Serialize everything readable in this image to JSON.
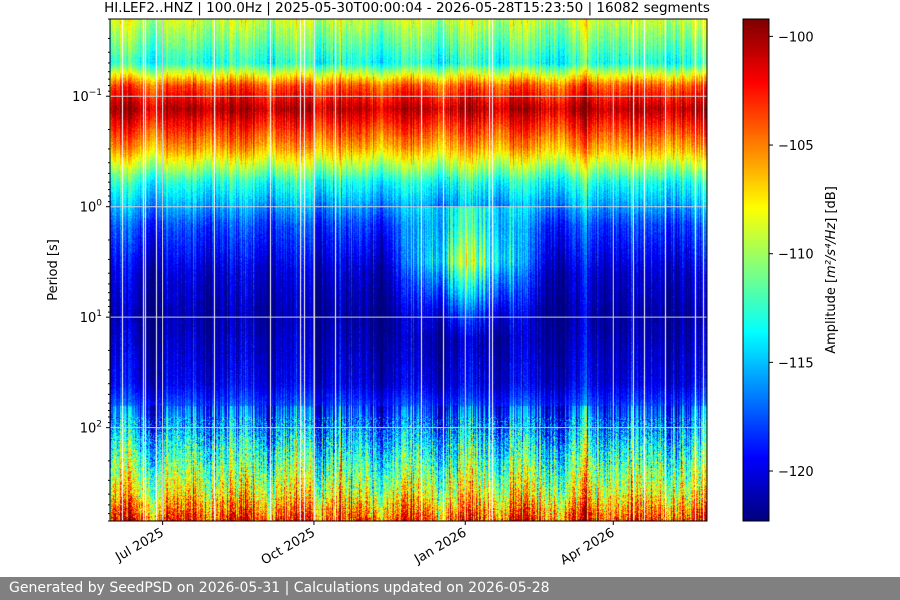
{
  "chart_data": {
    "type": "heatmap",
    "title": "HI.LEF2..HNZ | 100.0Hz | 2025-05-30T00:00:04 - 2026-05-28T15:23:50 | 16082 segments",
    "xlabel": "",
    "ylabel": "Period [s]",
    "x_scale": "time",
    "xlim": [
      "2025-05-30",
      "2026-05-28"
    ],
    "x_ticks": [
      {
        "date": "2025-07-01",
        "label": "Jul 2025"
      },
      {
        "date": "2025-10-01",
        "label": "Oct 2025"
      },
      {
        "date": "2026-01-01",
        "label": "Jan 2026"
      },
      {
        "date": "2026-04-01",
        "label": "Apr 2026"
      }
    ],
    "y_scale": "log",
    "y_inverted": true,
    "ylim": [
      0.02,
      700
    ],
    "y_ticks": [
      {
        "value": 0.1,
        "base": "10",
        "exp": "−1"
      },
      {
        "value": 1,
        "base": "10",
        "exp": "0"
      },
      {
        "value": 10,
        "base": "10",
        "exp": "1"
      },
      {
        "value": 100,
        "base": "10",
        "exp": "2"
      }
    ],
    "grid": true,
    "colormap": "jet",
    "colorbar": {
      "label_prefix": "Amplitude [",
      "label_unit": "m²/s⁴/Hz",
      "label_suffix": "] [dB]",
      "range": [
        -122.3,
        -99.2
      ],
      "ticks": [
        -100,
        -105,
        -110,
        -115,
        -120
      ]
    },
    "approx_mean_amplitude_profile": {
      "period_s": [
        0.02,
        0.05,
        0.08,
        0.13,
        0.3,
        0.6,
        1.5,
        4,
        10,
        40,
        100,
        200,
        400,
        700
      ],
      "amplitude_db": [
        -109,
        -113,
        -104,
        -100.5,
        -106,
        -113,
        -118,
        -120.5,
        -121.5,
        -120,
        -116,
        -112,
        -108,
        -103
      ]
    }
  },
  "footer": {
    "text": "Generated by SeedPSD on 2026-05-31 | Calculations updated on 2026-05-28"
  }
}
